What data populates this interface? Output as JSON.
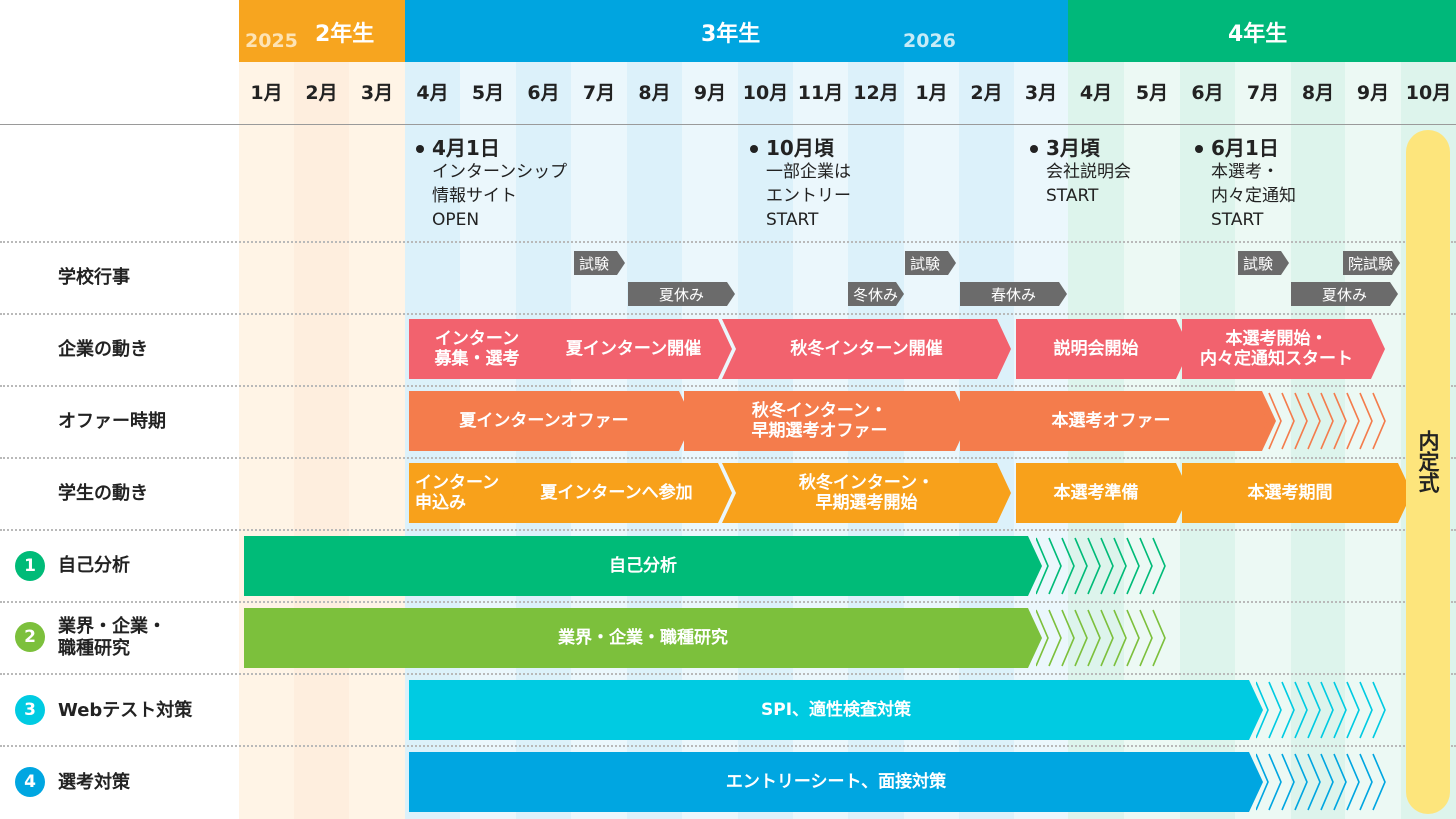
{
  "years": {
    "y2025": "2025",
    "y2026": "2026",
    "grade2": "2年生",
    "grade3": "3年生",
    "grade4": "4年生"
  },
  "months": [
    "1月",
    "2月",
    "3月",
    "4月",
    "5月",
    "6月",
    "7月",
    "8月",
    "9月",
    "10月",
    "11月",
    "12月",
    "1月",
    "2月",
    "3月",
    "4月",
    "5月",
    "6月",
    "7月",
    "8月",
    "9月",
    "10月"
  ],
  "milestones": [
    {
      "title": "4月1日",
      "body": "インターンシップ\n情報サイト\nOPEN"
    },
    {
      "title": "10月頃",
      "body": "一部企業は\nエントリー\nSTART"
    },
    {
      "title": "3月頃",
      "body": "会社説明会\nSTART"
    },
    {
      "title": "6月1日",
      "body": "本選考・\n内々定通知\nSTART"
    }
  ],
  "rows": {
    "school": "学校行事",
    "company": "企業の動き",
    "offer": "オファー時期",
    "student": "学生の動き",
    "self": "自己分析",
    "industry": "業界・企業・\n職種研究",
    "webtest": "Webテスト対策",
    "selection": "選考対策"
  },
  "steps": [
    "1",
    "2",
    "3",
    "4"
  ],
  "school_events": {
    "exam1": "試験",
    "summer": "夏休み",
    "winter": "冬休み",
    "exam2": "試験",
    "spring": "春休み",
    "exam3": "試験",
    "grad_exam": "院試験",
    "summer2": "夏休み"
  },
  "company_bars": [
    "インターン\n募集・選考",
    "夏インターン開催",
    "秋冬インターン開催",
    "説明会開始",
    "本選考開始・\n内々定通知スタート"
  ],
  "offer_bars": [
    "夏インターンオファー",
    "秋冬インターン・\n早期選考オファー",
    "本選考オファー"
  ],
  "student_bars": [
    "インターン\n申込み",
    "夏インターンへ参加",
    "秋冬インターン・\n早期選考開始",
    "本選考準備",
    "本選考期間"
  ],
  "self_bar": "自己分析",
  "industry_bar": "業界・企業・職種研究",
  "webtest_bar": "SPI、適性検査対策",
  "selection_bar": "エントリーシート、面接対策",
  "ceremony": "内定式",
  "colors": {
    "grade2": "#f7a51f",
    "grade3": "#00a5e0",
    "grade4": "#00b87a",
    "company": "#f2626e",
    "offer": "#f47c4c",
    "student": "#f8a11b",
    "self": "#00bb78",
    "industry": "#7cc03c",
    "webtest": "#00cbe2",
    "selection": "#00a6e1",
    "ceremony": "#fde57c"
  }
}
